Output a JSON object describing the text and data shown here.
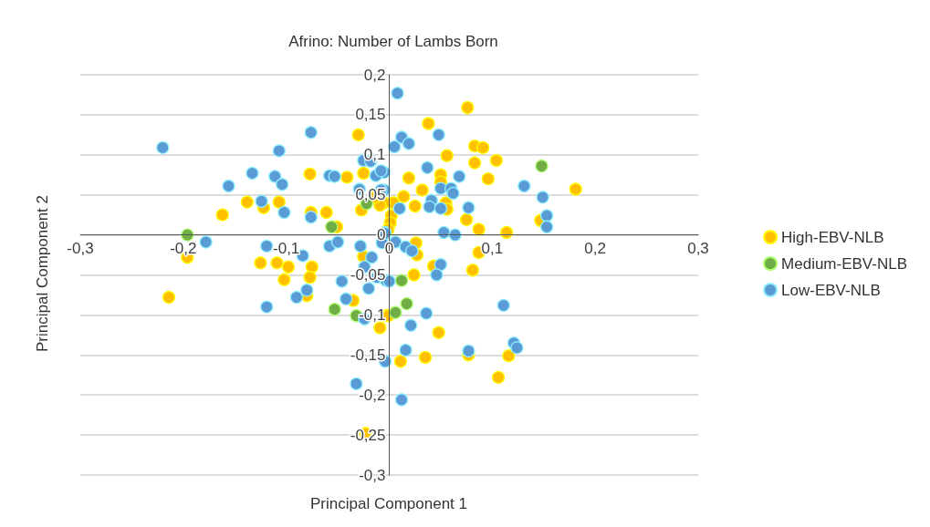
{
  "chart_data": {
    "type": "scatter",
    "title": "Afrino: Number of Lambs Born",
    "xlabel": "Principal Component 1",
    "ylabel": "Principal Component 2",
    "xlim": [
      -0.3,
      0.3
    ],
    "ylim": [
      -0.3,
      0.2
    ],
    "xticks": [
      {
        "value": -0.3,
        "label": "-0,3"
      },
      {
        "value": -0.2,
        "label": "-0,2"
      },
      {
        "value": -0.1,
        "label": "-0,1"
      },
      {
        "value": 0,
        "label": "0"
      },
      {
        "value": 0.1,
        "label": "0,1"
      },
      {
        "value": 0.2,
        "label": "0,2"
      },
      {
        "value": 0.3,
        "label": "0,3"
      }
    ],
    "yticks": [
      {
        "value": -0.3,
        "label": "-0,3"
      },
      {
        "value": -0.25,
        "label": "-0,25"
      },
      {
        "value": -0.2,
        "label": "-0,2"
      },
      {
        "value": -0.15,
        "label": "-0,15"
      },
      {
        "value": -0.1,
        "label": "-0,1"
      },
      {
        "value": -0.05,
        "label": "-0,05"
      },
      {
        "value": 0,
        "label": "0"
      },
      {
        "value": 0.05,
        "label": "0,05"
      },
      {
        "value": 0.1,
        "label": "0,1"
      },
      {
        "value": 0.15,
        "label": "0,15"
      },
      {
        "value": 0.2,
        "label": "0,2"
      }
    ],
    "grid": "y",
    "legend": "right",
    "marker": "circle",
    "series": [
      {
        "name": "High-EBV-NLB",
        "color": "#ffc000",
        "x": [
          0.076,
          0.038,
          0.083,
          0.091,
          0.056,
          0.104,
          0.083,
          0.05,
          0.019,
          0.096,
          0.05,
          0.032,
          0.181,
          0.014,
          0.004,
          0.025,
          0.055,
          0.056,
          0.002,
          0.001,
          -0.001,
          0.075,
          0.087,
          0.114,
          0.147,
          -0.005,
          -0.03,
          -0.077,
          -0.025,
          -0.041,
          -0.138,
          -0.122,
          -0.107,
          -0.162,
          -0.076,
          -0.061,
          -0.027,
          -0.009,
          -0.014,
          -0.051,
          -0.196,
          -0.214,
          -0.125,
          -0.109,
          -0.098,
          -0.102,
          -0.075,
          -0.077,
          -0.08,
          -0.035,
          -0.025,
          -0.009,
          -0.023,
          -0.003,
          0.026,
          0.027,
          0.087,
          0.043,
          0.081,
          0.024,
          -0.001,
          0.048,
          0.011,
          0.035,
          0.077,
          0.116,
          0.106
        ],
        "values": [
          0.159,
          0.139,
          0.111,
          0.109,
          0.099,
          0.093,
          0.09,
          0.075,
          0.071,
          0.07,
          0.066,
          0.056,
          0.057,
          0.048,
          0.04,
          0.036,
          0.04,
          0.032,
          0.024,
          0.015,
          0.007,
          0.019,
          0.007,
          0.003,
          0.018,
          0.04,
          0.125,
          0.076,
          0.077,
          0.072,
          0.041,
          0.034,
          0.041,
          0.025,
          0.028,
          0.028,
          0.031,
          0.037,
          0.047,
          0.01,
          -0.028,
          -0.078,
          -0.035,
          -0.035,
          -0.04,
          -0.056,
          -0.04,
          -0.053,
          -0.076,
          -0.082,
          -0.027,
          -0.116,
          -0.248,
          -0.101,
          -0.01,
          -0.025,
          -0.022,
          -0.039,
          -0.044,
          -0.05,
          -0.101,
          -0.122,
          -0.158,
          -0.153,
          -0.15,
          -0.151,
          -0.178
        ]
      },
      {
        "name": "Medium-EBV-NLB",
        "color": "#70ad47",
        "x": [
          0.148,
          -0.022,
          -0.056,
          -0.196,
          0.012,
          0.017,
          0.006,
          -0.053,
          -0.032
        ],
        "values": [
          0.086,
          0.039,
          0.01,
          0.0,
          -0.057,
          -0.086,
          -0.097,
          -0.093,
          -0.101
        ]
      },
      {
        "name": "Low-EBV-NLB",
        "color": "#5b9bd5",
        "x": [
          0.008,
          0.048,
          0.012,
          0.019,
          0.005,
          0.037,
          0.068,
          -0.005,
          -0.005,
          0.05,
          0.06,
          0.062,
          0.131,
          0.149,
          0.041,
          0.039,
          0.05,
          0.077,
          0.01,
          0.153,
          0.153,
          0.053,
          0.064,
          -0.076,
          -0.22,
          -0.107,
          -0.025,
          -0.018,
          -0.133,
          -0.111,
          -0.104,
          -0.156,
          -0.058,
          -0.053,
          -0.013,
          -0.008,
          -0.029,
          -0.008,
          -0.124,
          -0.102,
          -0.076,
          -0.004,
          -0.178,
          -0.119,
          -0.084,
          -0.058,
          -0.05,
          -0.028,
          -0.007,
          -0.004,
          -0.017,
          -0.024,
          -0.012,
          -0.003,
          -0.046,
          -0.02,
          -0.08,
          -0.09,
          -0.042,
          -0.119,
          -0.024,
          -0.004,
          -0.032,
          0.006,
          0.016,
          0.022,
          0.05,
          0.046,
          0.0,
          0.036,
          0.021,
          0.111,
          0.121,
          0.124,
          0.077,
          0.016,
          0.012
        ],
        "values": [
          0.177,
          0.125,
          0.122,
          0.114,
          0.11,
          0.084,
          0.073,
          0.078,
          0.056,
          0.058,
          0.058,
          0.052,
          0.061,
          0.047,
          0.043,
          0.035,
          0.033,
          0.034,
          0.033,
          0.024,
          0.01,
          0.003,
          0.0,
          0.128,
          0.109,
          0.105,
          0.093,
          0.092,
          0.077,
          0.073,
          0.063,
          0.061,
          0.074,
          0.073,
          0.074,
          0.08,
          0.057,
          0.056,
          0.042,
          0.028,
          0.022,
          0.003,
          -0.009,
          -0.014,
          -0.026,
          -0.014,
          -0.009,
          -0.014,
          -0.01,
          0.002,
          -0.028,
          -0.04,
          -0.053,
          -0.057,
          -0.058,
          -0.067,
          -0.069,
          -0.078,
          -0.08,
          -0.09,
          -0.105,
          -0.158,
          -0.186,
          -0.009,
          -0.015,
          -0.02,
          -0.037,
          -0.05,
          -0.058,
          -0.098,
          -0.113,
          -0.088,
          -0.135,
          -0.141,
          -0.145,
          -0.144,
          -0.206
        ]
      }
    ]
  }
}
